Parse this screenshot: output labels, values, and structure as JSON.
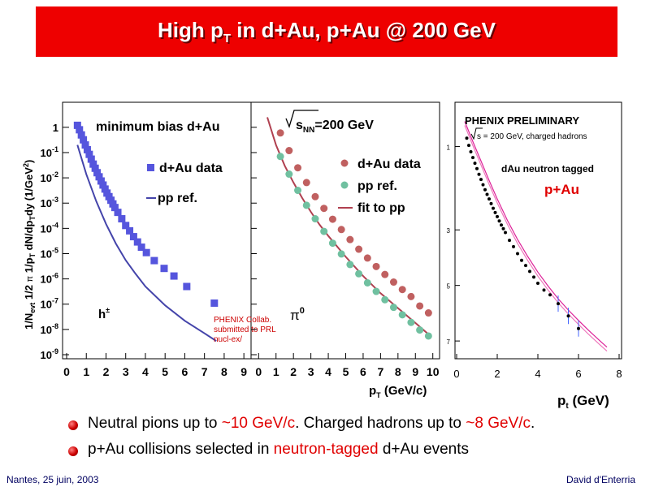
{
  "title": {
    "main": "High p",
    "sub": "T",
    "rest": " in d+Au, p+Au @ 200 GeV"
  },
  "colors": {
    "banner": "#ee0000",
    "dau_data": "#5555dd",
    "pp_ref_line": "#4444aa",
    "pi0_dau": "#c06060",
    "pi0_pp": "#70c0a0",
    "pi0_fit": "#b04050",
    "pau_points": "#000000",
    "pau_band": "#dd2299",
    "accent_red": "#e00000"
  },
  "chart_data": [
    {
      "type": "scatter",
      "name": "left",
      "ylabel": "1/N",
      "ylabel_full": "1/Nevt 1/2π 1/pT dN/dpTdy (1/GeV²)",
      "ylabel_parts": {
        "a": "1/N",
        "a_sub": "evt",
        "b": " 1/2 ",
        "pi": "π",
        "c": " 1/p",
        "c_sub": "T",
        "d": " dN/dp",
        "d_sub": "T",
        "e": "dy (1/GeV",
        "e_sup": "2",
        "f": ")"
      },
      "y_scale": "log",
      "ylim": [
        1e-09,
        3
      ],
      "xlim": [
        0,
        9.2
      ],
      "x_ticks": [
        "0",
        "1",
        "2",
        "3",
        "4",
        "5",
        "6",
        "7",
        "8",
        "9"
      ],
      "y_ticks": [
        {
          "v": 1,
          "base": "1",
          "exp": ""
        },
        {
          "v": 0.1,
          "base": "10",
          "exp": "-1"
        },
        {
          "v": 0.01,
          "base": "10",
          "exp": "-2"
        },
        {
          "v": 0.001,
          "base": "10",
          "exp": "-3"
        },
        {
          "v": 0.0001,
          "base": "10",
          "exp": "-4"
        },
        {
          "v": 1e-05,
          "base": "10",
          "exp": "-5"
        },
        {
          "v": 1e-06,
          "base": "10",
          "exp": "-6"
        },
        {
          "v": 1e-07,
          "base": "10",
          "exp": "-7"
        },
        {
          "v": 1e-08,
          "base": "10",
          "exp": "-8"
        },
        {
          "v": 1e-09,
          "base": "10",
          "exp": "-9"
        }
      ],
      "label_system": "minimum bias d+Au",
      "label_particle": "h",
      "label_particle_sup": "±",
      "legend": [
        {
          "label": "d+Au data",
          "marker": "square"
        },
        {
          "label": "pp ref.",
          "marker": "line"
        }
      ],
      "series": [
        {
          "name": "d+Au data",
          "marker": "square",
          "x": [
            0.55,
            0.65,
            0.75,
            0.85,
            0.95,
            1.05,
            1.15,
            1.25,
            1.35,
            1.45,
            1.55,
            1.65,
            1.75,
            1.85,
            1.95,
            2.05,
            2.15,
            2.25,
            2.35,
            2.45,
            2.6,
            2.8,
            3.0,
            3.2,
            3.4,
            3.6,
            3.8,
            4.05,
            4.45,
            4.95,
            5.45,
            6.1,
            7.5
          ],
          "y": [
            1.2,
            0.8,
            0.5,
            0.32,
            0.2,
            0.13,
            0.085,
            0.055,
            0.035,
            0.024,
            0.016,
            0.011,
            0.0075,
            0.0052,
            0.0036,
            0.0025,
            0.0018,
            0.0013,
            0.00093,
            0.00067,
            0.00043,
            0.00024,
            0.00013,
            8e-05,
            4.7e-05,
            2.9e-05,
            1.8e-05,
            1.1e-05,
            5.3e-06,
            2.6e-06,
            1.3e-06,
            5e-07,
            1.1e-07
          ]
        },
        {
          "name": "pp ref.",
          "marker": "line",
          "x": [
            0.55,
            1.0,
            1.5,
            2.0,
            2.5,
            3.0,
            3.5,
            4.0,
            5.0,
            6.0,
            7.0,
            7.6
          ],
          "y": [
            0.2,
            0.014,
            0.0012,
            0.00015,
            2.5e-05,
            5.5e-06,
            1.6e-06,
            5e-07,
            9e-08,
            2.2e-08,
            7e-09,
            3.5e-09
          ]
        }
      ],
      "annotation_lines": [
        "PHENIX Collab.",
        "submitted to PRL",
        "nucl-ex/"
      ]
    },
    {
      "type": "scatter",
      "name": "middle",
      "y_scale": "log",
      "ylim": [
        1e-09,
        3
      ],
      "xlim": [
        -0.2,
        10.2
      ],
      "x_ticks": [
        "0",
        "1",
        "2",
        "3",
        "4",
        "5",
        "6",
        "7",
        "8",
        "9",
        "10"
      ],
      "xlabel": "p",
      "xlabel_sub": "T",
      "xlabel_unit": " (GeV/c)",
      "label_energy_s": "s",
      "label_energy_sub": "NN",
      "label_energy_rest": "=200 GeV",
      "label_particle": "π",
      "label_particle_sup": "0",
      "legend": [
        {
          "label": "d+Au data",
          "marker": "circle"
        },
        {
          "label": "pp ref.",
          "marker": "circle"
        },
        {
          "label": "fit to pp",
          "marker": "line"
        }
      ],
      "series": [
        {
          "name": "d+Au data",
          "marker": "circle",
          "x": [
            1.25,
            1.75,
            2.25,
            2.75,
            3.25,
            3.75,
            4.25,
            4.75,
            5.25,
            5.75,
            6.25,
            6.75,
            7.25,
            7.75,
            8.25,
            8.75,
            9.25,
            9.75
          ],
          "y": [
            0.6,
            0.12,
            0.025,
            0.0065,
            0.0018,
            0.00062,
            0.00023,
            9e-05,
            3.6e-05,
            1.5e-05,
            6.7e-06,
            3.1e-06,
            1.5e-06,
            7.5e-07,
            3.8e-07,
            2e-07,
            8.5e-08,
            4.5e-08
          ]
        },
        {
          "name": "pp ref.",
          "marker": "circle",
          "x": [
            1.25,
            1.75,
            2.25,
            2.75,
            3.25,
            3.75,
            4.25,
            4.75,
            5.25,
            5.75,
            6.25,
            6.75,
            7.25,
            7.75,
            8.25,
            8.75,
            9.25,
            9.75
          ],
          "y": [
            0.07,
            0.014,
            0.0032,
            0.00082,
            0.00024,
            7.6e-05,
            2.6e-05,
            9.7e-06,
            3.7e-06,
            1.6e-06,
            7e-07,
            3.2e-07,
            1.5e-07,
            7.5e-08,
            3.8e-08,
            1.9e-08,
            9.5e-09,
            5.5e-09
          ]
        },
        {
          "name": "fit to pp",
          "marker": "line",
          "x": [
            0.5,
            1.0,
            1.5,
            2.0,
            2.5,
            3.0,
            3.5,
            4.0,
            5.0,
            6.0,
            7.0,
            8.0,
            9.0,
            9.8
          ],
          "y": [
            2.5,
            0.2,
            0.03,
            0.0065,
            0.0016,
            0.00045,
            0.00014,
            5e-05,
            7.5e-06,
            1.3e-06,
            2.7e-07,
            7e-08,
            1.8e-08,
            6e-09
          ]
        }
      ]
    },
    {
      "type": "scatter",
      "name": "right",
      "y_scale": "log",
      "ylim": [
        3e-08,
        30
      ],
      "xlim": [
        0,
        8
      ],
      "x_ticks": [
        "0",
        "2",
        "4",
        "6",
        "8"
      ],
      "x_tick_values": [
        0,
        2,
        4,
        6,
        8
      ],
      "y_ticks": [
        {
          "v": 1,
          "base": "1",
          "exp": ""
        },
        {
          "v": 0.001,
          "base": "3",
          "exp": ""
        },
        {
          "v": 1e-05,
          "base": "5",
          "exp": ""
        },
        {
          "v": 1e-07,
          "base": "7",
          "exp": ""
        }
      ],
      "xlabel": "p",
      "xlabel_sub": "t",
      "xlabel_unit": " (GeV)",
      "title": "PHENIX PRELIMINARY",
      "subtitle_s": "s",
      "subtitle_rest": " = 200 GeV, charged hadrons",
      "label_tag": "dAu neutron tagged",
      "label_system": "p+Au",
      "series": [
        {
          "name": "p+Au",
          "marker": "dot",
          "x": [
            0.5,
            0.6,
            0.7,
            0.8,
            0.9,
            1.0,
            1.1,
            1.2,
            1.3,
            1.4,
            1.5,
            1.6,
            1.7,
            1.8,
            1.9,
            2.0,
            2.1,
            2.2,
            2.3,
            2.4,
            2.6,
            2.8,
            3.0,
            3.2,
            3.4,
            3.6,
            3.8,
            4.0,
            4.3,
            4.6,
            5.0,
            5.5,
            6.0
          ],
          "y": [
            2.0,
            1.1,
            0.65,
            0.4,
            0.25,
            0.16,
            0.1,
            0.065,
            0.042,
            0.028,
            0.019,
            0.013,
            0.0088,
            0.006,
            0.0042,
            0.003,
            0.0021,
            0.0015,
            0.0011,
            0.0008,
            0.00042,
            0.00025,
            0.00014,
            8e-05,
            5.2e-05,
            3.2e-05,
            2e-05,
            1.2e-05,
            6.8e-06,
            4.6e-06,
            2.2e-06,
            8e-07,
            2.8e-07
          ]
        }
      ],
      "band_x": [
        0.4,
        0.8,
        1.2,
        1.6,
        2.0,
        2.5,
        3.0,
        3.5,
        4.0,
        4.5,
        5.0,
        5.5,
        6.0,
        6.5,
        7.0,
        7.4
      ],
      "band_y": [
        8,
        1.5,
        0.3,
        0.06,
        0.013,
        0.0022,
        0.00045,
        0.00011,
        3e-05,
        9.5e-06,
        3.3e-06,
        1.3e-06,
        5.5e-07,
        2.4e-07,
        1.1e-07,
        6e-08
      ]
    }
  ],
  "bullets": [
    {
      "parts": [
        {
          "t": "Neutral pions up to ",
          "red": false
        },
        {
          "t": "~10 GeV/c",
          "red": true
        },
        {
          "t": ". Charged hadrons up to ",
          "red": false
        },
        {
          "t": "~8 GeV/c",
          "red": true
        },
        {
          "t": ".",
          "red": false
        }
      ]
    },
    {
      "parts": [
        {
          "t": "p+Au collisions selected in ",
          "red": false
        },
        {
          "t": "neutron-tagged",
          "red": true
        },
        {
          "t": " d+Au events",
          "red": false
        }
      ]
    }
  ],
  "footer": {
    "left": "Nantes, 25 juin, 2003",
    "right": "David d'Enterria"
  }
}
